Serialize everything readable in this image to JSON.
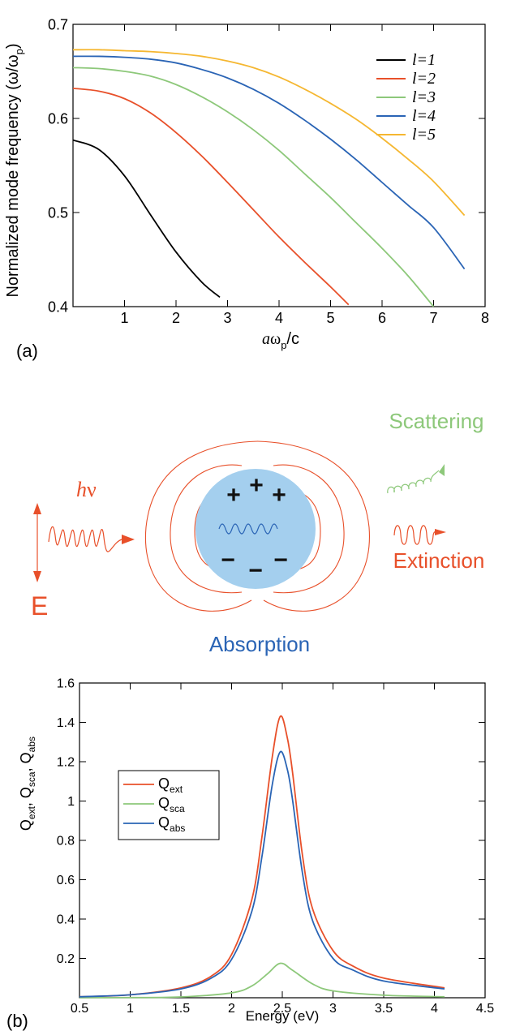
{
  "colors": {
    "black": "#000000",
    "orange": "#e8502a",
    "green": "#8dc87a",
    "blue": "#2a64b5",
    "yellow": "#f5b731",
    "sphere": "#a4cfee"
  },
  "panel_a": {
    "panel_label": "(a)",
    "ylabel": "Normalized mode frequency (ω/ω",
    "ylabel_sub": "p",
    "ylabel_end": ")",
    "xlabel_a": "a",
    "xlabel_omega": "ω",
    "xlabel_sub": "p",
    "xlabel_end": "/c"
  },
  "panel_b": {
    "panel_label": "(b)",
    "ylabel_parts": [
      "Q",
      "ext",
      ",  Q",
      "sca",
      ",  Q",
      "abs"
    ],
    "legend_sub": [
      "ext",
      "sca",
      "abs"
    ]
  },
  "diagram": {
    "scattering_label": "Scattering",
    "hv_h": "h",
    "hv_nu": "ν",
    "extinction_label": "Extinction",
    "e_label": "E",
    "absorption_label": "Absorption",
    "plus_sign": "+",
    "minus_sign": "−"
  },
  "chart_data": [
    {
      "type": "line",
      "title": "",
      "xlabel": "aωp/c",
      "ylabel": "Normalized mode frequency (ω/ωp)",
      "xlim": [
        0,
        8
      ],
      "ylim": [
        0.4,
        0.7
      ],
      "xticks": [
        1,
        2,
        3,
        4,
        5,
        6,
        7,
        8
      ],
      "yticks": [
        0.4,
        0.5,
        0.6,
        0.7
      ],
      "legend_position": "top-right",
      "series": [
        {
          "name": "l=1",
          "color": "#000000",
          "x": [
            0,
            0.5,
            1,
            1.5,
            2,
            2.5,
            2.85
          ],
          "y": [
            0.577,
            0.567,
            0.539,
            0.498,
            0.458,
            0.426,
            0.41
          ]
        },
        {
          "name": "l=2",
          "color": "#e8502a",
          "x": [
            0,
            0.5,
            1,
            1.5,
            2,
            2.5,
            3,
            3.5,
            4,
            4.5,
            5,
            5.35
          ],
          "y": [
            0.632,
            0.629,
            0.621,
            0.606,
            0.585,
            0.56,
            0.532,
            0.503,
            0.474,
            0.447,
            0.421,
            0.402
          ]
        },
        {
          "name": "l=3",
          "color": "#8dc87a",
          "x": [
            0,
            0.5,
            1,
            1.5,
            2,
            2.5,
            3,
            3.5,
            4,
            4.5,
            5,
            5.5,
            6,
            6.5,
            7
          ],
          "y": [
            0.654,
            0.653,
            0.65,
            0.645,
            0.636,
            0.623,
            0.607,
            0.588,
            0.566,
            0.541,
            0.516,
            0.489,
            0.462,
            0.433,
            0.4
          ]
        },
        {
          "name": "l=4",
          "color": "#2a64b5",
          "x": [
            0,
            0.5,
            1,
            1.5,
            2,
            2.5,
            3,
            3.5,
            4,
            4.5,
            5,
            5.5,
            6,
            6.5,
            7,
            7.6
          ],
          "y": [
            0.666,
            0.666,
            0.665,
            0.663,
            0.659,
            0.652,
            0.643,
            0.631,
            0.616,
            0.598,
            0.578,
            0.556,
            0.532,
            0.508,
            0.484,
            0.44
          ]
        },
        {
          "name": "l=5",
          "color": "#f5b731",
          "x": [
            0,
            0.5,
            1,
            1.5,
            2,
            2.5,
            3,
            3.5,
            4,
            4.5,
            5,
            5.5,
            6,
            6.5,
            7,
            7.6
          ],
          "y": [
            0.673,
            0.673,
            0.672,
            0.671,
            0.669,
            0.666,
            0.661,
            0.654,
            0.644,
            0.631,
            0.616,
            0.599,
            0.579,
            0.557,
            0.533,
            0.497
          ]
        }
      ]
    },
    {
      "type": "line",
      "title": "",
      "xlabel": "Energy (eV)",
      "ylabel": "Qext,  Qsca,  Qabs",
      "xlim": [
        0.5,
        4.5
      ],
      "ylim": [
        0,
        1.6
      ],
      "xticks": [
        0.5,
        1,
        1.5,
        2,
        2.5,
        3,
        3.5,
        4,
        4.5
      ],
      "yticks": [
        0.2,
        0.4,
        0.6,
        0.8,
        1,
        1.2,
        1.4,
        1.6
      ],
      "legend_position": "left",
      "series": [
        {
          "name": "Qext",
          "color": "#e8502a",
          "x": [
            0.5,
            1,
            1.5,
            1.8,
            2,
            2.2,
            2.3,
            2.4,
            2.48,
            2.55,
            2.6,
            2.7,
            2.8,
            3,
            3.2,
            3.5,
            4.1
          ],
          "y": [
            0.005,
            0.015,
            0.05,
            0.11,
            0.22,
            0.5,
            0.82,
            1.22,
            1.43,
            1.32,
            1.15,
            0.72,
            0.45,
            0.24,
            0.16,
            0.1,
            0.05
          ]
        },
        {
          "name": "Qsca",
          "color": "#8dc87a",
          "x": [
            0.5,
            1,
            1.5,
            2,
            2.2,
            2.35,
            2.48,
            2.6,
            2.8,
            3,
            3.5,
            4.1
          ],
          "y": [
            0,
            0.001,
            0.004,
            0.025,
            0.06,
            0.12,
            0.175,
            0.14,
            0.07,
            0.035,
            0.013,
            0.005
          ]
        },
        {
          "name": "Qabs",
          "color": "#2a64b5",
          "x": [
            0.5,
            1,
            1.5,
            1.8,
            2,
            2.2,
            2.3,
            2.4,
            2.48,
            2.55,
            2.6,
            2.7,
            2.8,
            3,
            3.2,
            3.5,
            4.1
          ],
          "y": [
            0.005,
            0.015,
            0.045,
            0.1,
            0.195,
            0.44,
            0.72,
            1.08,
            1.25,
            1.16,
            1.01,
            0.63,
            0.39,
            0.2,
            0.14,
            0.085,
            0.045
          ]
        }
      ]
    }
  ]
}
